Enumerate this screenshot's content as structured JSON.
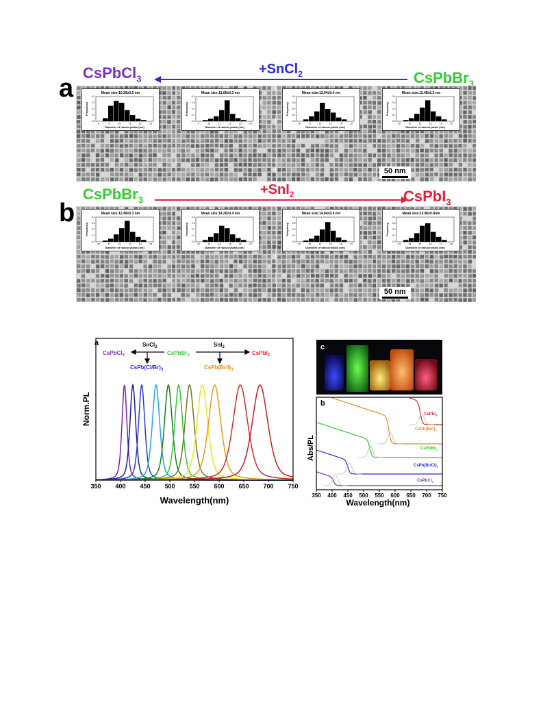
{
  "panel_a": {
    "letter": "a",
    "left_label": "CsPbCl",
    "left_sub": "3",
    "right_label": "CsPbBr",
    "right_sub": "3",
    "arrow_label": "+SnCl",
    "arrow_sub": "2",
    "scale_bar": "50 nm",
    "insets": [
      {
        "mean": "Mean size:10.29±0.5 nm",
        "xticks": [
          "8",
          "9",
          "10",
          "11",
          "12",
          "13"
        ],
        "bars": [
          0.05,
          0.25,
          0.33,
          0.3,
          0.18,
          0.1,
          0.04,
          0.02
        ]
      },
      {
        "mean": "Mean size:11.65±0.3 nm",
        "xticks": [
          "9",
          "10",
          "11",
          "12",
          "13",
          "14"
        ],
        "bars": [
          0.02,
          0.04,
          0.08,
          0.18,
          0.34,
          0.12,
          0.05,
          0.02
        ]
      },
      {
        "mean": "Mean size:12.04±0.4 nm",
        "xticks": [
          "10",
          "11",
          "12",
          "13",
          "14",
          "15"
        ],
        "bars": [
          0.03,
          0.08,
          0.16,
          0.3,
          0.2,
          0.14,
          0.06,
          0.03
        ]
      },
      {
        "mean": "Mean size:12.48±0.3 nm",
        "xticks": [
          "10",
          "11",
          "12",
          "13",
          "14",
          "15"
        ],
        "bars": [
          0.02,
          0.05,
          0.12,
          0.22,
          0.34,
          0.16,
          0.08,
          0.03
        ]
      }
    ]
  },
  "panel_b": {
    "letter": "b",
    "left_label": "CsPbBr",
    "left_sub": "3",
    "right_label": "CsPbI",
    "right_sub": "3",
    "arrow_label": "+SnI",
    "arrow_sub": "2",
    "scale_bar": "50 nm",
    "insets": [
      {
        "mean": "Mean size:12.48±0.3 nm",
        "xticks": [
          "10",
          "11",
          "12",
          "13",
          "14",
          "15"
        ],
        "bars": [
          0.02,
          0.05,
          0.12,
          0.22,
          0.34,
          0.16,
          0.08,
          0.03
        ]
      },
      {
        "mean": "Mean size:14.26±0.4 nm",
        "xticks": [
          "12",
          "13",
          "14",
          "15",
          "16",
          "17"
        ],
        "bars": [
          0.03,
          0.08,
          0.14,
          0.26,
          0.22,
          0.12,
          0.06,
          0.03
        ]
      },
      {
        "mean": "Mean size:14.84±0.4 nm",
        "xticks": [
          "12",
          "13",
          "14",
          "15",
          "16",
          "17"
        ],
        "bars": [
          0.02,
          0.05,
          0.1,
          0.2,
          0.32,
          0.18,
          0.07,
          0.03
        ]
      },
      {
        "mean": "Mean size:15.96±0.4nm",
        "xticks": [
          "13",
          "14",
          "15",
          "16",
          "17",
          "18"
        ],
        "bars": [
          0.03,
          0.06,
          0.14,
          0.26,
          0.3,
          0.16,
          0.08,
          0.03
        ]
      }
    ]
  },
  "inset_text": {
    "xlabel": "Diameter of nanocrystals (nm)",
    "ylabel": "Frequency",
    "yticks": [
      "0.0",
      "0.1",
      "0.2",
      "0.3",
      "0.4"
    ]
  },
  "pl_chart": {
    "letter": "a",
    "ylabel": "Norm.PL",
    "xlabel": "Wavelength(nm)",
    "xticks": [
      "350",
      "400",
      "450",
      "500",
      "550",
      "600",
      "650",
      "700",
      "750"
    ],
    "label_cl": "CsPbCl",
    "label_br": "CsPbBr",
    "label_i": "CsPbI",
    "label_clbr": "CsPb(Cl/Br)",
    "label_bri": "CsPb(Br/I)",
    "label_sub3": "3",
    "reagent_cl": "SnCl",
    "reagent_i": "SnI",
    "reagent_sub": "2"
  },
  "abs_chart": {
    "letter": "b",
    "ylabel": "Abs/PL",
    "xlabel": "Wavelength(nm)",
    "xticks": [
      "350",
      "400",
      "450",
      "500",
      "550",
      "600",
      "650",
      "700",
      "750"
    ],
    "labels": [
      "CsPbI",
      "CsPb(Br/I)",
      "CsPbBr",
      "CsPb(Br/Cl)",
      "CsPbCl"
    ],
    "sub3": "3"
  },
  "photo": {
    "letter": "c"
  },
  "colors": {
    "cl": "#7a2fc0",
    "br": "#33cc33",
    "i": "#e0213a",
    "arrow_blue": "#2a2ad8",
    "arrow_red": "#e0213a",
    "orange": "#e08a1e",
    "navy": "#2233aa"
  },
  "chart_data": [
    {
      "type": "line",
      "title": "",
      "xlabel": "Wavelength(nm)",
      "ylabel": "Norm.PL",
      "xlim": [
        350,
        750
      ],
      "ylim": [
        0,
        1
      ],
      "series": [
        {
          "peak": 408,
          "fwhm": 12,
          "color": "#7a1fa8"
        },
        {
          "peak": 425,
          "fwhm": 14,
          "color": "#1a1a9a"
        },
        {
          "peak": 443,
          "fwhm": 15,
          "color": "#2a3ad0"
        },
        {
          "peak": 472,
          "fwhm": 18,
          "color": "#1aa8d8"
        },
        {
          "peak": 497,
          "fwhm": 19,
          "color": "#167a16"
        },
        {
          "peak": 518,
          "fwhm": 19,
          "color": "#2fc42f"
        },
        {
          "peak": 540,
          "fwhm": 22,
          "color": "#6a7a18"
        },
        {
          "peak": 566,
          "fwhm": 26,
          "color": "#e6e619"
        },
        {
          "peak": 591,
          "fwhm": 30,
          "color": "#e89a1a"
        },
        {
          "peak": 643,
          "fwhm": 36,
          "color": "#cc2a2a"
        },
        {
          "peak": 683,
          "fwhm": 38,
          "color": "#c81a1a"
        }
      ]
    },
    {
      "type": "line",
      "title": "",
      "xlabel": "Wavelength(nm)",
      "ylabel": "Abs/PL",
      "xlim": [
        350,
        750
      ],
      "series": [
        {
          "name": "CsPbCl3",
          "edge": 405,
          "pl": 410,
          "offset": 0.0,
          "color": "#7a2fa8"
        },
        {
          "name": "CsPb(Br/Cl)3",
          "edge": 450,
          "pl": 455,
          "offset": 0.2,
          "color": "#2a2ad0"
        },
        {
          "name": "CsPbBr3",
          "edge": 520,
          "pl": 522,
          "offset": 0.4,
          "color": "#33c433"
        },
        {
          "name": "CsPb(Br/I)3",
          "edge": 580,
          "pl": 585,
          "offset": 0.6,
          "color": "#e08a1e"
        },
        {
          "name": "CsPbI3",
          "edge": 680,
          "pl": 685,
          "offset": 0.8,
          "color": "#cc2a2a"
        }
      ]
    }
  ]
}
